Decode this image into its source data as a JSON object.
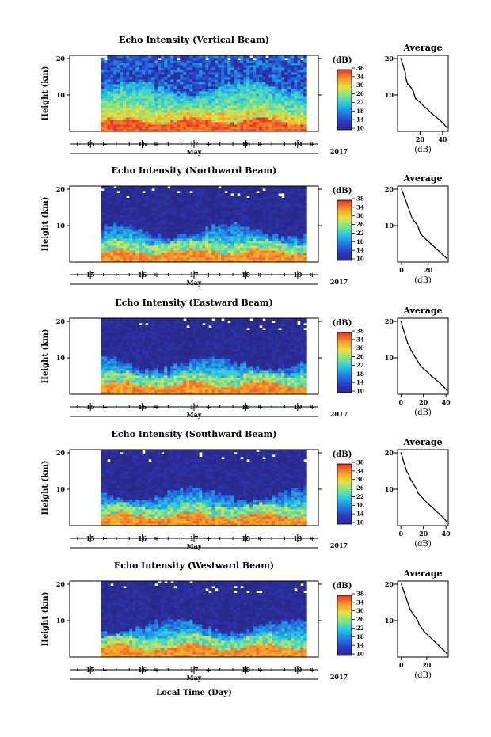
{
  "figure": {
    "xlabel": "Local Time (Day)",
    "month_label": "May",
    "year_label": "2017",
    "colorbar_unit": "(dB)",
    "colorbar_ticks": [
      10,
      14,
      18,
      22,
      26,
      30,
      34,
      38
    ],
    "day_ticks": [
      15,
      16,
      17,
      18,
      19
    ],
    "height_ticks": [
      10,
      20
    ],
    "ylabel": "Height (km)",
    "profile_title": "Average",
    "profile_xlabel": "(dB)"
  },
  "chart_data": [
    {
      "type": "heatmap",
      "title": "Echo Intensity (Vertical Beam)",
      "xlabel": "",
      "ylabel": "Height (km)",
      "colorbar_label": "(dB)",
      "xlim": [
        "May 14.6",
        "May 19.4"
      ],
      "ylim": [
        0,
        20
      ],
      "data_start_day": 15.2,
      "data_end_day": 19.15,
      "clim": [
        10,
        38
      ],
      "low_layer_intensity_db": 38,
      "mid_layer_intensity_db": [
        20,
        30
      ],
      "upper_intensity_db": [
        10,
        16
      ]
    },
    {
      "type": "line",
      "title": "Average",
      "xlabel": "(dB)",
      "ylabel": "",
      "xticks": [
        20,
        40
      ],
      "xlim": [
        0,
        45
      ],
      "ylim": [
        0,
        20
      ],
      "x": [
        3,
        4,
        5,
        6,
        7,
        7,
        8,
        9,
        12,
        14,
        15,
        16,
        20,
        23,
        27,
        30,
        34,
        38,
        41,
        44
      ],
      "y": [
        20,
        19,
        18,
        17,
        16,
        15,
        14,
        13,
        12,
        11,
        10,
        9,
        8,
        7,
        6,
        5,
        4,
        3,
        2,
        1
      ]
    },
    {
      "type": "heatmap",
      "title": "Echo Intensity (Northward Beam)",
      "xlabel": "",
      "ylabel": "Height (km)",
      "colorbar_label": "(dB)",
      "xlim": [
        "May 14.6",
        "May 19.4"
      ],
      "ylim": [
        0,
        20
      ],
      "data_start_day": 15.2,
      "data_end_day": 19.15,
      "clim": [
        10,
        38
      ],
      "low_layer_intensity_db": 36,
      "mid_layer_intensity_db": [
        16,
        26
      ],
      "upper_intensity_db": [
        10,
        12
      ]
    },
    {
      "type": "line",
      "title": "Average",
      "xlabel": "(dB)",
      "ylabel": "",
      "xticks": [
        0,
        20
      ],
      "xlim": [
        -3,
        35
      ],
      "ylim": [
        0,
        20
      ],
      "x": [
        0,
        1,
        2,
        3,
        4,
        5,
        6,
        7,
        8,
        10,
        12,
        13,
        14,
        16,
        19,
        22,
        25,
        28,
        31,
        34
      ],
      "y": [
        20,
        19,
        18,
        17,
        16,
        15,
        14,
        13,
        12,
        11,
        10,
        9,
        8,
        7,
        6,
        5,
        4,
        3,
        2,
        1
      ]
    },
    {
      "type": "heatmap",
      "title": "Echo Intensity (Eastward Beam)",
      "xlabel": "",
      "ylabel": "Height (km)",
      "colorbar_label": "(dB)",
      "xlim": [
        "May 14.6",
        "May 19.4"
      ],
      "ylim": [
        0,
        20
      ],
      "data_start_day": 15.2,
      "data_end_day": 19.15,
      "clim": [
        10,
        38
      ],
      "low_layer_intensity_db": 36,
      "mid_layer_intensity_db": [
        16,
        26
      ],
      "upper_intensity_db": [
        10,
        12
      ]
    },
    {
      "type": "line",
      "title": "Average",
      "xlabel": "(dB)",
      "ylabel": "",
      "xticks": [
        0,
        20,
        40
      ],
      "xlim": [
        -3,
        42
      ],
      "ylim": [
        0,
        20
      ],
      "x": [
        0,
        1,
        2,
        3,
        4,
        5,
        6,
        8,
        9,
        11,
        13,
        15,
        17,
        20,
        24,
        27,
        31,
        35,
        38,
        41
      ],
      "y": [
        20,
        19,
        18,
        17,
        16,
        15,
        14,
        13,
        12,
        11,
        10,
        9,
        8,
        7,
        6,
        5,
        4,
        3,
        2,
        1
      ]
    },
    {
      "type": "heatmap",
      "title": "Echo Intensity (Southward Beam)",
      "xlabel": "",
      "ylabel": "Height (km)",
      "colorbar_label": "(dB)",
      "xlim": [
        "May 14.6",
        "May 19.4"
      ],
      "ylim": [
        0,
        20
      ],
      "data_start_day": 15.2,
      "data_end_day": 19.15,
      "clim": [
        10,
        38
      ],
      "low_layer_intensity_db": 36,
      "mid_layer_intensity_db": [
        16,
        26
      ],
      "upper_intensity_db": [
        10,
        12
      ]
    },
    {
      "type": "line",
      "title": "Average",
      "xlabel": "(dB)",
      "ylabel": "",
      "xticks": [
        0,
        20,
        40
      ],
      "xlim": [
        -3,
        42
      ],
      "ylim": [
        0,
        20
      ],
      "x": [
        0,
        1,
        2,
        3,
        4,
        5,
        7,
        8,
        10,
        12,
        14,
        15,
        18,
        21,
        24,
        28,
        31,
        35,
        38,
        41
      ],
      "y": [
        20,
        19,
        18,
        17,
        16,
        15,
        14,
        13,
        12,
        11,
        10,
        9,
        8,
        7,
        6,
        5,
        4,
        3,
        2,
        1
      ]
    },
    {
      "type": "heatmap",
      "title": "Echo Intensity (Westward Beam)",
      "xlabel": "",
      "ylabel": "Height (km)",
      "colorbar_label": "(dB)",
      "xlim": [
        "May 14.6",
        "May 19.4"
      ],
      "ylim": [
        0,
        20
      ],
      "data_start_day": 15.2,
      "data_end_day": 19.15,
      "clim": [
        10,
        38
      ],
      "low_layer_intensity_db": 36,
      "mid_layer_intensity_db": [
        16,
        26
      ],
      "upper_intensity_db": [
        10,
        12
      ]
    },
    {
      "type": "line",
      "title": "Average",
      "xlabel": "(dB)",
      "ylabel": "",
      "xticks": [
        0,
        20
      ],
      "xlim": [
        -3,
        37
      ],
      "ylim": [
        0,
        20
      ],
      "x": [
        0,
        1,
        2,
        3,
        4,
        5,
        6,
        7,
        9,
        11,
        13,
        14,
        16,
        18,
        21,
        24,
        27,
        30,
        33,
        36
      ],
      "y": [
        20,
        19,
        18,
        17,
        16,
        15,
        14,
        13,
        12,
        11,
        10,
        9,
        8,
        7,
        6,
        5,
        4,
        3,
        2,
        1
      ]
    }
  ]
}
